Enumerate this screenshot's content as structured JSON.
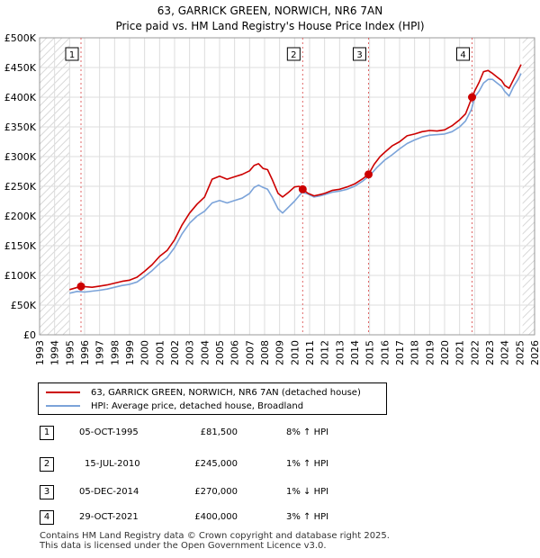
{
  "chart_data": {
    "type": "line",
    "title": "63, GARRICK GREEN, NORWICH, NR6 7AN",
    "subtitle": "Price paid vs. HM Land Registry's House Price Index (HPI)",
    "xlim": [
      1993,
      2026
    ],
    "ylim": [
      0,
      500000
    ],
    "x_ticks": [
      "1993",
      "1994",
      "1995",
      "1996",
      "1997",
      "1998",
      "1999",
      "2000",
      "2001",
      "2002",
      "2003",
      "2004",
      "2005",
      "2006",
      "2007",
      "2008",
      "2009",
      "2010",
      "2011",
      "2012",
      "2013",
      "2014",
      "2015",
      "2016",
      "2017",
      "2018",
      "2019",
      "2020",
      "2021",
      "2022",
      "2023",
      "2024",
      "2025",
      "2026"
    ],
    "y_ticks": [
      {
        "value": 0,
        "label": "£0"
      },
      {
        "value": 50000,
        "label": "£50K"
      },
      {
        "value": 100000,
        "label": "£100K"
      },
      {
        "value": 150000,
        "label": "£150K"
      },
      {
        "value": 200000,
        "label": "£200K"
      },
      {
        "value": 250000,
        "label": "£250K"
      },
      {
        "value": 300000,
        "label": "£300K"
      },
      {
        "value": 350000,
        "label": "£350K"
      },
      {
        "value": 400000,
        "label": "£400K"
      },
      {
        "value": 450000,
        "label": "£450K"
      },
      {
        "value": 500000,
        "label": "£500K"
      }
    ],
    "hatch_before": 1995.0,
    "hatch_after": 2025.2,
    "series": [
      {
        "name": "63, GARRICK GREEN, NORWICH, NR6 7AN (detached house)",
        "color": "#cc0000",
        "x": [
          1995.0,
          1995.76,
          1996.5,
          1997.0,
          1997.5,
          1998.0,
          1998.5,
          1999.0,
          1999.5,
          2000.0,
          2000.5,
          2001.0,
          2001.5,
          2002.0,
          2002.5,
          2003.0,
          2003.5,
          2004.0,
          2004.5,
          2005.0,
          2005.5,
          2006.0,
          2006.5,
          2007.0,
          2007.3,
          2007.6,
          2007.9,
          2008.2,
          2008.5,
          2008.9,
          2009.2,
          2009.6,
          2010.0,
          2010.3,
          2010.54,
          2010.9,
          2011.3,
          2011.7,
          2012.0,
          2012.5,
          2013.0,
          2013.5,
          2014.0,
          2014.5,
          2014.93,
          2015.3,
          2015.7,
          2016.0,
          2016.5,
          2017.0,
          2017.5,
          2018.0,
          2018.5,
          2019.0,
          2019.5,
          2020.0,
          2020.5,
          2021.0,
          2021.4,
          2021.83,
          2022.0,
          2022.3,
          2022.6,
          2022.9,
          2023.2,
          2023.5,
          2023.8,
          2024.0,
          2024.3,
          2024.6,
          2024.9,
          2025.1
        ],
        "y": [
          76000,
          81500,
          80000,
          82000,
          84000,
          87000,
          90000,
          92000,
          97000,
          107000,
          118000,
          132000,
          142000,
          160000,
          185000,
          205000,
          220000,
          232000,
          262000,
          267000,
          262000,
          266000,
          270000,
          276000,
          285000,
          288000,
          280000,
          278000,
          262000,
          238000,
          232000,
          240000,
          249000,
          250000,
          245000,
          238000,
          234000,
          236000,
          238000,
          243000,
          245000,
          249000,
          254000,
          262000,
          270000,
          287000,
          300000,
          307000,
          318000,
          325000,
          335000,
          338000,
          342000,
          344000,
          343000,
          345000,
          352000,
          362000,
          372000,
          400000,
          410000,
          425000,
          443000,
          445000,
          440000,
          434000,
          428000,
          420000,
          415000,
          430000,
          445000,
          455000
        ]
      },
      {
        "name": "HPI: Average price, detached house, Broadland",
        "color": "#7ba3d9",
        "x": [
          1995.0,
          1995.5,
          1996.0,
          1996.5,
          1997.0,
          1997.5,
          1998.0,
          1998.5,
          1999.0,
          1999.5,
          2000.0,
          2000.5,
          2001.0,
          2001.5,
          2002.0,
          2002.5,
          2003.0,
          2003.5,
          2004.0,
          2004.5,
          2005.0,
          2005.5,
          2006.0,
          2006.5,
          2007.0,
          2007.3,
          2007.6,
          2007.9,
          2008.2,
          2008.5,
          2008.9,
          2009.2,
          2009.6,
          2010.0,
          2010.5,
          2010.9,
          2011.3,
          2011.7,
          2012.0,
          2012.5,
          2013.0,
          2013.5,
          2014.0,
          2014.5,
          2015.0,
          2015.5,
          2016.0,
          2016.5,
          2017.0,
          2017.5,
          2018.0,
          2018.5,
          2019.0,
          2019.5,
          2020.0,
          2020.5,
          2021.0,
          2021.4,
          2021.8,
          2022.0,
          2022.3,
          2022.6,
          2022.9,
          2023.2,
          2023.5,
          2023.8,
          2024.0,
          2024.3,
          2024.6,
          2024.9,
          2025.1
        ],
        "y": [
          70000,
          73000,
          72000,
          73500,
          75000,
          77000,
          80000,
          83000,
          85000,
          89000,
          98000,
          108000,
          120000,
          130000,
          147000,
          170000,
          188000,
          200000,
          208000,
          222000,
          226000,
          222000,
          226000,
          230000,
          238000,
          248000,
          252000,
          248000,
          245000,
          232000,
          212000,
          205000,
          215000,
          225000,
          240000,
          237000,
          232000,
          234000,
          236000,
          240000,
          242000,
          245000,
          250000,
          258000,
          268000,
          282000,
          294000,
          303000,
          313000,
          322000,
          328000,
          333000,
          336000,
          337000,
          338000,
          342000,
          350000,
          360000,
          380000,
          400000,
          410000,
          424000,
          430000,
          430000,
          424000,
          418000,
          410000,
          402000,
          418000,
          430000,
          440000
        ]
      }
    ],
    "sale_markers": [
      {
        "label": "1",
        "x": 1995.76,
        "y": 81500
      },
      {
        "label": "2",
        "x": 2010.54,
        "y": 245000
      },
      {
        "label": "3",
        "x": 2014.93,
        "y": 270000
      },
      {
        "label": "4",
        "x": 2021.83,
        "y": 400000
      }
    ]
  },
  "legend": {
    "property_label": "63, GARRICK GREEN, NORWICH, NR6 7AN (detached house)",
    "hpi_label": "HPI: Average price, detached house, Broadland",
    "property_color": "#cc0000",
    "hpi_color": "#7ba3d9"
  },
  "sales": [
    {
      "num": "1",
      "date": "05-OCT-1995",
      "price": "£81,500",
      "hpi": "8% ↑ HPI"
    },
    {
      "num": "2",
      "date": "15-JUL-2010",
      "price": "£245,000",
      "hpi": "1% ↑ HPI"
    },
    {
      "num": "3",
      "date": "05-DEC-2014",
      "price": "£270,000",
      "hpi": "1% ↓ HPI"
    },
    {
      "num": "4",
      "date": "29-OCT-2021",
      "price": "£400,000",
      "hpi": "3% ↑ HPI"
    }
  ],
  "footer": {
    "line1": "Contains HM Land Registry data © Crown copyright and database right 2025.",
    "line2": "This data is licensed under the Open Government Licence v3.0."
  }
}
